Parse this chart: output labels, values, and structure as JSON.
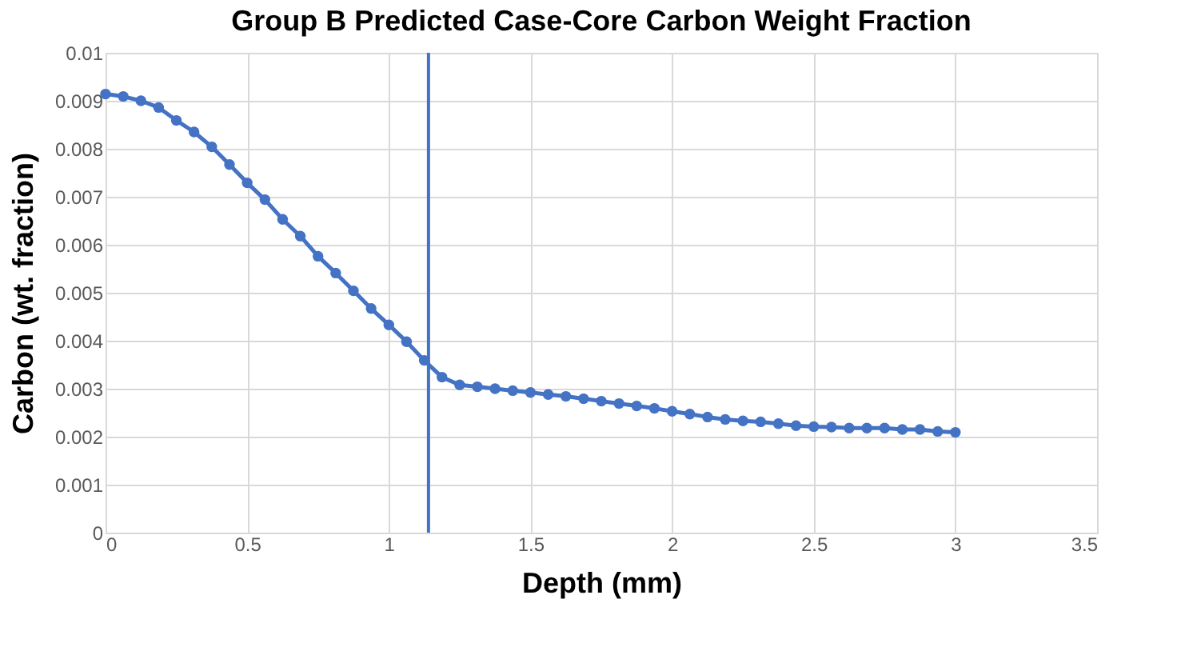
{
  "chart_data": {
    "type": "line",
    "title": "Group B Predicted Case-Core Carbon Weight Fraction",
    "xlabel": "Depth (mm)",
    "ylabel": "Carbon (wt. fraction)",
    "x": [
      0,
      0.0625,
      0.125,
      0.1875,
      0.25,
      0.3125,
      0.375,
      0.4375,
      0.5,
      0.5625,
      0.625,
      0.6875,
      0.75,
      0.8125,
      0.875,
      0.9375,
      1,
      1.0625,
      1.125,
      1.1875,
      1.25,
      1.3125,
      1.375,
      1.4375,
      1.5,
      1.5625,
      1.625,
      1.6875,
      1.75,
      1.8125,
      1.875,
      1.9375,
      2,
      2.0625,
      2.125,
      2.1875,
      2.25,
      2.3125,
      2.375,
      2.4375,
      2.5,
      2.5625,
      2.625,
      2.6875,
      2.75,
      2.8125,
      2.875,
      2.9375,
      3
    ],
    "series": [
      {
        "color": "#4472c4",
        "values": [
          0.00914,
          0.00909,
          0.009,
          0.00886,
          0.00859,
          0.00835,
          0.00804,
          0.00767,
          0.00729,
          0.00694,
          0.00653,
          0.00618,
          0.00576,
          0.00541,
          0.00504,
          0.00467,
          0.00433,
          0.00398,
          0.00359,
          0.00324,
          0.00308,
          0.00304,
          0.003,
          0.00296,
          0.00292,
          0.00288,
          0.00284,
          0.00279,
          0.00274,
          0.00269,
          0.00264,
          0.00259,
          0.00253,
          0.00247,
          0.00241,
          0.00236,
          0.00233,
          0.00231,
          0.00227,
          0.00223,
          0.00221,
          0.0022,
          0.00218,
          0.00218,
          0.00218,
          0.00215,
          0.00215,
          0.00211,
          0.00209
        ]
      }
    ],
    "xlim": [
      0,
      3.5
    ],
    "xticks": [
      0,
      0.5,
      1,
      1.5,
      2,
      2.5,
      3,
      3.5
    ],
    "ylim": [
      0,
      0.01
    ],
    "yticks": [
      0,
      0.001,
      0.002,
      0.003,
      0.004,
      0.005,
      0.006,
      0.007,
      0.008,
      0.009,
      0.01
    ],
    "ref_lines": [
      {
        "axis": "x",
        "value": 1.14,
        "color": "#4472c4"
      }
    ],
    "grid": true,
    "marker": "circle",
    "line_style": "solid"
  }
}
